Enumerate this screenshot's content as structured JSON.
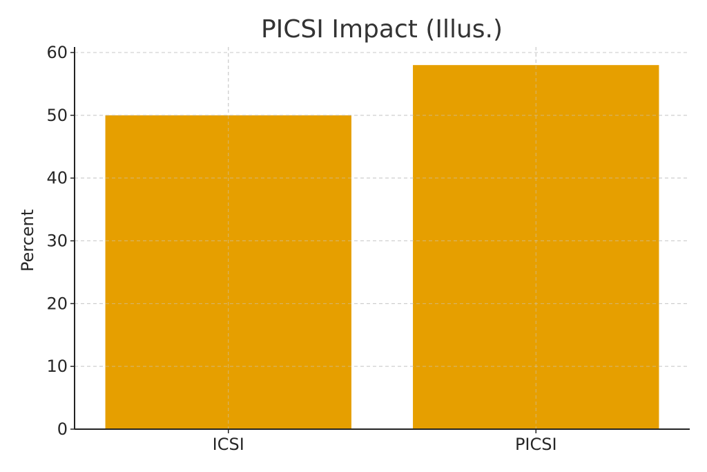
{
  "chart_data": {
    "type": "bar",
    "title": "PICSI Impact (Illus.)",
    "xlabel": "",
    "ylabel": "Percent",
    "categories": [
      "ICSI",
      "PICSI"
    ],
    "values": [
      50,
      58
    ],
    "ylim": [
      0,
      60
    ],
    "yticks": [
      0,
      10,
      20,
      30,
      40,
      50,
      60
    ],
    "grid": true,
    "legend": "none",
    "colors": {
      "bar": "#E69F00",
      "grid": "#c8c8c8",
      "axis": "#222222",
      "text": "#262626"
    }
  }
}
